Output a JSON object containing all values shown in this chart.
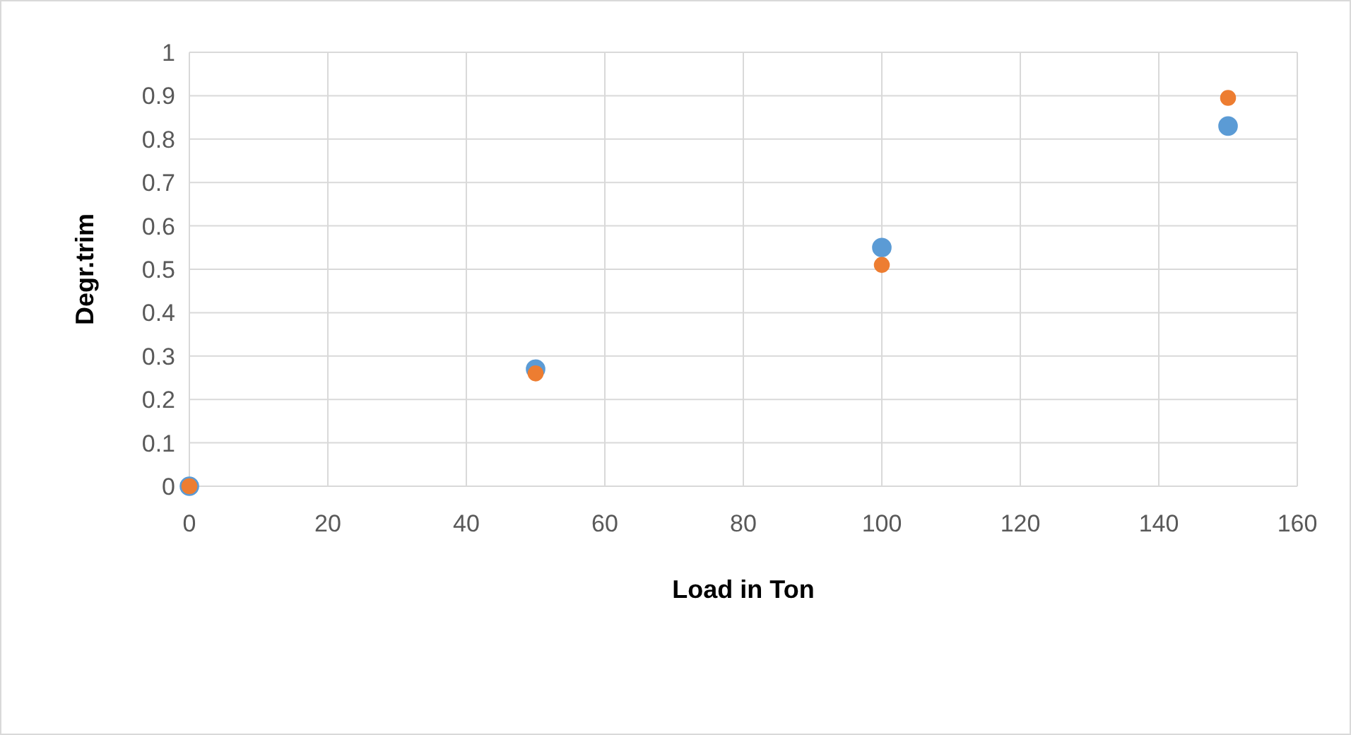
{
  "chart_data": {
    "type": "scatter",
    "xlabel": "Load in Ton",
    "ylabel": "Degr.trim",
    "series": [
      {
        "color": "#5b9bd5",
        "x": [
          0,
          50,
          100,
          150
        ],
        "values": [
          0,
          0.27,
          0.55,
          0.83
        ]
      },
      {
        "color": "#ed7d31",
        "x": [
          0,
          50,
          100,
          150
        ],
        "values": [
          0,
          0.26,
          0.51,
          0.895
        ]
      }
    ],
    "xlim": [
      0,
      160
    ],
    "xticks": [
      0,
      20,
      40,
      60,
      80,
      100,
      120,
      140,
      160
    ],
    "ylim": [
      0,
      1
    ],
    "yticks": [
      0,
      0.1,
      0.2,
      0.3,
      0.4,
      0.5,
      0.6,
      0.7,
      0.8,
      0.9,
      1
    ],
    "grid": true,
    "marker": "circle"
  }
}
